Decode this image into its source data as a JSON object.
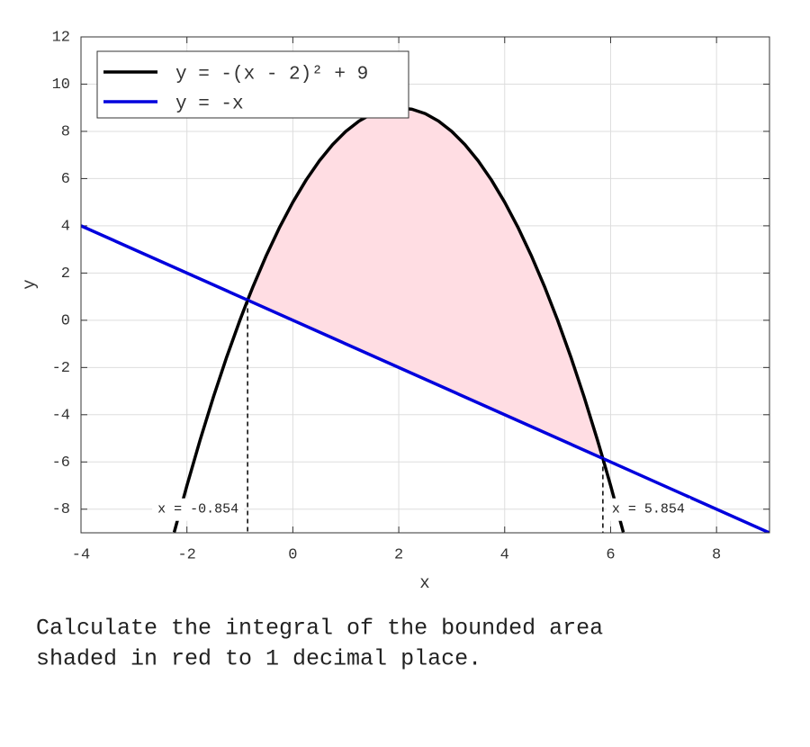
{
  "chart_data": {
    "type": "line",
    "xlabel": "x",
    "ylabel": "y",
    "xlim": [
      -4,
      9
    ],
    "xticks": [
      -4,
      -2,
      0,
      2,
      4,
      6,
      8
    ],
    "ylim": [
      -9,
      12
    ],
    "yticks": [
      -8,
      -6,
      -4,
      -2,
      0,
      2,
      4,
      6,
      8,
      10,
      12
    ],
    "grid": true,
    "legend": "upper left",
    "series": [
      {
        "name": "y = -(x - 2)² + 9",
        "color": "#000000",
        "x": [
          -2.24,
          -2,
          -1.75,
          -1.5,
          -1.25,
          -1,
          -0.854,
          -0.75,
          -0.5,
          -0.25,
          0,
          0.25,
          0.5,
          0.75,
          1,
          1.25,
          1.5,
          1.75,
          2,
          2.25,
          2.5,
          2.75,
          3,
          3.25,
          3.5,
          3.75,
          4,
          4.25,
          4.5,
          4.75,
          5,
          5.25,
          5.5,
          5.75,
          5.854,
          6,
          6.24
        ],
        "values": [
          -8.98,
          -7,
          -5.0625,
          -3.25,
          -1.5625,
          0,
          0.854,
          1.4375,
          2.75,
          3.9375,
          5,
          5.9375,
          6.75,
          7.4375,
          8,
          8.4375,
          8.75,
          8.9375,
          9,
          8.9375,
          8.75,
          8.4375,
          8,
          7.4375,
          6.75,
          5.9375,
          5,
          3.9375,
          2.75,
          1.4375,
          0,
          -1.5625,
          -3.25,
          -5.0625,
          -5.854,
          -7,
          -8.98
        ]
      },
      {
        "name": "y = -x",
        "color": "#0000dd",
        "x": [
          -4,
          -0.854,
          5.854,
          9
        ],
        "values": [
          4,
          0.854,
          -5.854,
          -9
        ]
      }
    ],
    "shade_color": "#ffdde3",
    "annotations": [
      {
        "x": -0.854,
        "label": "x = -0.854",
        "side": "left"
      },
      {
        "x": 5.854,
        "label": "x = 5.854",
        "side": "right"
      }
    ]
  },
  "question": [
    "Calculate the integral of the bounded area",
    "shaded in red to 1 decimal place."
  ]
}
